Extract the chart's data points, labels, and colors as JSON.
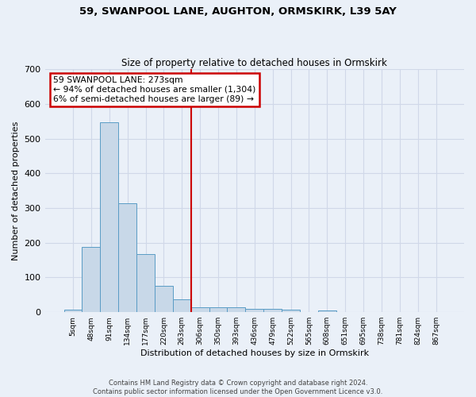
{
  "title1": "59, SWANPOOL LANE, AUGHTON, ORMSKIRK, L39 5AY",
  "title2": "Size of property relative to detached houses in Ormskirk",
  "xlabel": "Distribution of detached houses by size in Ormskirk",
  "ylabel": "Number of detached properties",
  "footer": "Contains HM Land Registry data © Crown copyright and database right 2024.\nContains public sector information licensed under the Open Government Licence v3.0.",
  "bin_labels": [
    "5sqm",
    "48sqm",
    "91sqm",
    "134sqm",
    "177sqm",
    "220sqm",
    "263sqm",
    "306sqm",
    "350sqm",
    "393sqm",
    "436sqm",
    "479sqm",
    "522sqm",
    "565sqm",
    "608sqm",
    "651sqm",
    "695sqm",
    "738sqm",
    "781sqm",
    "824sqm",
    "867sqm"
  ],
  "bar_values": [
    8,
    187,
    546,
    314,
    167,
    76,
    38,
    14,
    15,
    14,
    10,
    10,
    8,
    0,
    6,
    0,
    0,
    0,
    0,
    0,
    0
  ],
  "bar_color": "#c8d8e8",
  "bar_edge_color": "#5a9cc5",
  "vline_x": 6.5,
  "annotation_text": "59 SWANPOOL LANE: 273sqm\n← 94% of detached houses are smaller (1,304)\n6% of semi-detached houses are larger (89) →",
  "annotation_box_color": "#ffffff",
  "annotation_box_edge": "#cc0000",
  "ylim": [
    0,
    700
  ],
  "yticks": [
    0,
    100,
    200,
    300,
    400,
    500,
    600,
    700
  ],
  "grid_color": "#d0d8e8",
  "bg_color": "#eaf0f8"
}
